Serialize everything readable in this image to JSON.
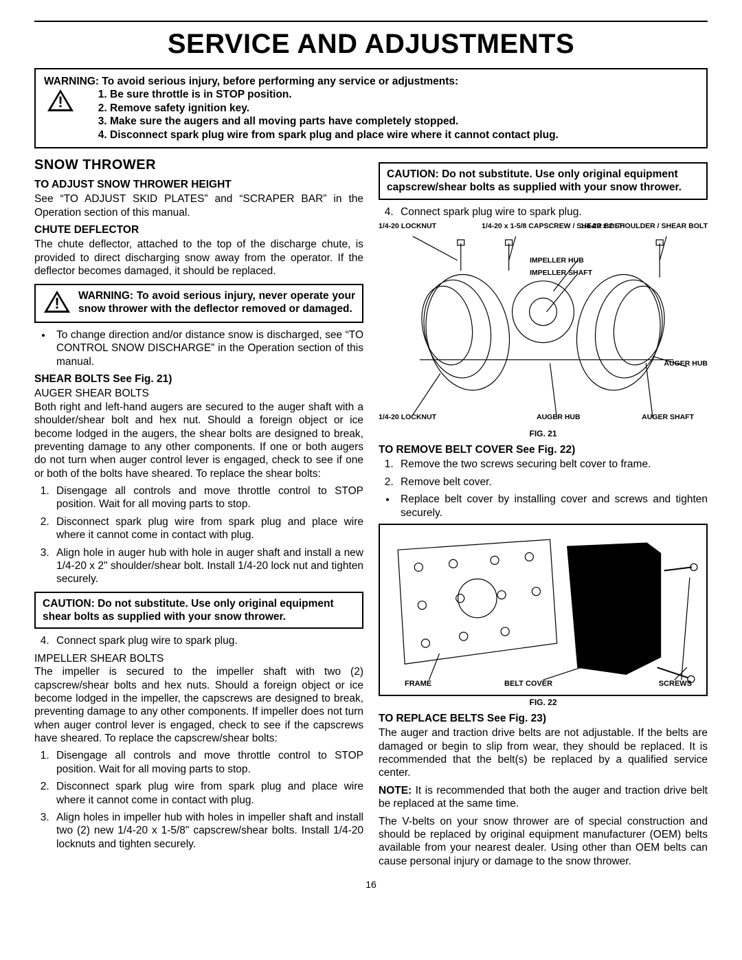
{
  "title": "SERVICE AND ADJUSTMENTS",
  "top_warning": {
    "lead": "WARNING: To avoid serious injury, before performing any service or adjustments:",
    "items": [
      "Be sure throttle is in STOP position.",
      "Remove safety ignition key.",
      "Make sure the augers and all moving parts have completely stopped.",
      "Disconnect spark plug wire from spark plug and place wire where it cannot contact plug."
    ]
  },
  "left": {
    "h2": "SNOW THROWER",
    "adjust_height_h": "TO ADJUST SNOW THROWER HEIGHT",
    "adjust_height_p": "See “TO ADJUST SKID PLATES” and “SCRAPER BAR” in the Operation section of this manual.",
    "chute_h": "CHUTE DEFLECTOR",
    "chute_p": "The chute deflector, attached to the top of the discharge chute, is provided to direct discharging snow away from the operator. If the deflector becomes damaged, it should be replaced.",
    "chute_warn": "WARNING: To avoid serious injury, never operate your snow thrower with the deflector removed or damaged.",
    "chute_bullet": "To change direction and/or distance snow is discharged, see “TO CONTROL SNOW DISCHARGE” in the Op­eration section of this manual.",
    "shear_h": "SHEAR BOLTS See Fig. 21)",
    "auger_sub": "AUGER SHEAR BOLTS",
    "auger_p": "Both right and left-hand augers are secured to the auger shaft with a shoulder/shear bolt and hex nut. Should a for­eign object or ice become lodged in the augers, the shear bolts are designed to break, preventing damage to any other components. If one or both augers do not turn when auger control lever is engaged, check to see if one or both of the bolts have sheared. To replace the shear bolts:",
    "auger_steps": [
      "Disengage all controls and move throttle control to STOP position. Wait for all moving parts to stop.",
      "Disconnect spark plug wire from spark plug and place wire where it cannot come in contact with plug.",
      "Align hole in auger hub with hole in auger shaft and install a new 1/4-20 x 2\" shoulder/shear bolt. Install 1/4-20 lock nut and tighten securely."
    ],
    "auger_caution": "CAUTION: Do not substitute. Use only original equipment shear bolts as supplied with your snow thrower.",
    "auger_step4": "Connect spark plug wire to spark plug.",
    "impeller_sub": "IMPELLER SHEAR BOLTS",
    "impeller_p": "The impeller is secured to the impeller shaft with two (2) capscrew/shear bolts and hex nuts. Should a foreign object or ice become lodged in the impeller, the capscrews are designed to break, preventing damage to any other com­ponents. If impeller does not turn when auger control lever is engaged, check to see if the capscrews have sheared. To replace the capscrew/shear bolts:",
    "impeller_steps": [
      "Disengage all controls and move throttle control to STOP position. Wait for all moving parts to stop.",
      "Disconnect spark plug wire from spark plug and place wire where it cannot come in contact with plug.",
      "Align holes in impeller hub with holes in impeller shaft and install two (2) new 1/4-20 x 1-5/8\" capscrew/shear bolts. Install 1/4-20 locknuts and tighten securely."
    ]
  },
  "right": {
    "top_caution": "CAUTION: Do not substitute. Use only original equipment capscrew/shear bolts as supplied with your snow thrower.",
    "step4": "Connect spark plug wire to spark plug.",
    "fig21": {
      "caption": "FIG. 21",
      "labels": {
        "a": "1/4-20 LOCKNUT",
        "b": "1/4-20 x 1-5/8 CAPSCREW / SHEAR BOLT",
        "c": "1/4-20 x 2 SHOULDER / SHEAR BOLT",
        "d": "IMPELLER HUB",
        "e": "IMPELLER SHAFT",
        "f": "AUGER HUB",
        "g": "1/4-20 LOCKNUT",
        "h": "AUGER HUB",
        "i": "AUGER SHAFT"
      }
    },
    "belt_cover_h": "TO REMOVE BELT COVER See Fig. 22)",
    "belt_cover_steps": [
      "Remove the two screws securing belt cover to frame.",
      "Remove belt cover."
    ],
    "belt_cover_bullet": "Replace belt cover by installing cover and screws and tighten securely.",
    "fig22": {
      "caption": "FIG. 22",
      "frame": "FRAME",
      "cover": "BELT COVER",
      "screws": "SCREWS"
    },
    "replace_h": "TO REPLACE BELTS See Fig. 23)",
    "replace_p1": "The auger and traction drive belts are not adjustable. If the belts are damaged or begin to slip from wear, they should be replaced. It is recommended that the belt(s) be replaced by a qualified service center.",
    "replace_note": "NOTE: It is recommended that both the auger and traction drive belt be replaced at the same time.",
    "replace_p2": "The V-belts on your snow thrower are of special construction and should be replaced by original equipment manufacturer (OEM) belts available from your nearest dealer. Using other than OEM belts can cause personal injury or damage to the snow thrower."
  },
  "page_num": "16"
}
